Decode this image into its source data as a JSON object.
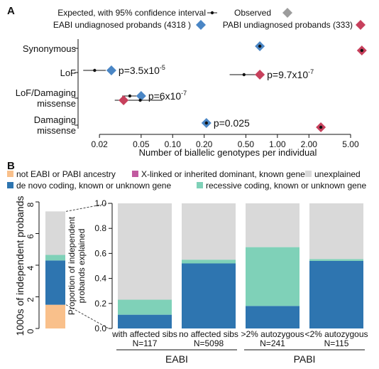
{
  "colors": {
    "eabi": "#4a86c5",
    "pabi": "#c7405c",
    "observed": "#9c9c9c",
    "not_ancestry": "#f9c08b",
    "x_linked": "#c15aa0",
    "unexplained": "#d9d9d9",
    "de_novo": "#2e75b0",
    "recessive": "#7fd1b8"
  },
  "chart_data": [
    {
      "panel": "A",
      "type": "scatter",
      "xscale": "log",
      "xlabel": "Number of biallelic genotypes per individual",
      "xticks": [
        "0.02",
        "0.05",
        "0.10",
        "0.20",
        "0.50",
        "1.00",
        "2.00",
        "5.00"
      ],
      "xtick_values": [
        0.02,
        0.05,
        0.1,
        0.2,
        0.5,
        1.0,
        2.0,
        5.0
      ],
      "xlim": [
        0.0125,
        8.5
      ],
      "categories": [
        "Synonymous",
        "LoF",
        "LoF/Damaging missense",
        "Damaging missense"
      ],
      "category_labels": [
        [
          "Synonymous"
        ],
        [
          "LoF"
        ],
        [
          "LoF/Damaging",
          "missense"
        ],
        [
          "Damaging",
          "missense"
        ]
      ],
      "legend": {
        "expected": "Expected, with 95% confidence interval",
        "observed": "Observed",
        "eabi": "EABI undiagnosed probands (4318 )",
        "pabi": "PABI undiagnosed probands (333)"
      },
      "series": [
        {
          "name": "EABI undiagnosed probands (4318 )",
          "points": [
            {
              "category": "Synonymous",
              "observed": 0.68,
              "expected": 0.68,
              "ci": [
                0.66,
                0.7
              ]
            },
            {
              "category": "LoF",
              "observed": 0.026,
              "expected": 0.018,
              "ci": [
                0.014,
                0.023
              ]
            },
            {
              "category": "LoF/Damaging missense",
              "observed": 0.05,
              "expected": 0.039,
              "ci": [
                0.033,
                0.046
              ]
            },
            {
              "category": "Damaging missense",
              "observed": 0.21,
              "expected": 0.21,
              "ci": [
                0.19,
                0.23
              ]
            }
          ]
        },
        {
          "name": "PABI undiagnosed probands (333)",
          "points": [
            {
              "category": "Synonymous",
              "observed": 6.4,
              "expected": 6.4,
              "ci": [
                6.1,
                6.7
              ]
            },
            {
              "category": "LoF",
              "observed": 0.68,
              "expected": 0.48,
              "ci": [
                0.35,
                0.65
              ]
            },
            {
              "category": "LoF/Damaging missense",
              "observed": 0.034,
              "expected": 0.049,
              "ci": [
                0.028,
                0.08
              ]
            },
            {
              "category": "Damaging missense",
              "observed": 2.6,
              "expected": 2.6,
              "ci": [
                2.45,
                2.75
              ]
            }
          ]
        }
      ],
      "annotations": [
        {
          "category": "LoF",
          "series": "EABI undiagnosed probands (4318 )",
          "mantissa": "p=3.5x10",
          "exponent": "-5"
        },
        {
          "category": "LoF",
          "series": "PABI undiagnosed probands (333)",
          "mantissa": "p=9.7x10",
          "exponent": "-7"
        },
        {
          "category": "LoF/Damaging missense",
          "series": "EABI undiagnosed probands (4318 )",
          "mantissa": "p=6x10",
          "exponent": "-7"
        },
        {
          "category": "Damaging missense",
          "series": "EABI undiagnosed probands (4318 )",
          "mantissa": "p=0.025",
          "exponent": ""
        }
      ]
    },
    {
      "panel": "B-left",
      "type": "bar",
      "stacked": true,
      "ylabel": "1000s of independent  probands",
      "ylim": [
        0,
        8
      ],
      "yticks": [
        "0",
        "2",
        "4",
        "6",
        "8"
      ],
      "segments": [
        {
          "name": "not EABI or PABI ancestry",
          "value": 1.5
        },
        {
          "name": "de novo coding, known or unknown gene",
          "value": 2.8
        },
        {
          "name": "recessive coding, known or unknown gene",
          "value": 0.35
        },
        {
          "name": "unexplained",
          "value": 2.75
        }
      ]
    },
    {
      "panel": "B-right",
      "type": "bar",
      "stacked": true,
      "ylabel": "Proportion of independent probands explained",
      "ylim": [
        0,
        1
      ],
      "yticks": [
        "0.0",
        "0.2",
        "0.4",
        "0.6",
        "0.8",
        "1.0"
      ],
      "legend": [
        "not EABI or PABI ancestry",
        "X-linked or inherited dominant, known gene",
        "unexplained",
        "de novo coding, known or unknown gene",
        "recessive coding, known or unknown gene"
      ],
      "categories": [
        {
          "label": "with affected sibs",
          "n": "N=117",
          "group": "EABI"
        },
        {
          "label": "no affected sibs",
          "n": "N=5098",
          "group": "EABI"
        },
        {
          "label": ">2% autozygous",
          "n": "N=241",
          "group": "PABI"
        },
        {
          "label": "<2% autozygous",
          "n": "N=115",
          "group": "PABI"
        }
      ],
      "groups": [
        "EABI",
        "PABI"
      ],
      "series": [
        {
          "name": "de novo coding, known or unknown gene",
          "values": [
            0.11,
            0.52,
            0.18,
            0.54
          ]
        },
        {
          "name": "recessive coding, known or unknown gene",
          "values": [
            0.12,
            0.03,
            0.47,
            0.015
          ]
        },
        {
          "name": "unexplained",
          "values": [
            0.77,
            0.45,
            0.35,
            0.445
          ]
        }
      ]
    }
  ]
}
